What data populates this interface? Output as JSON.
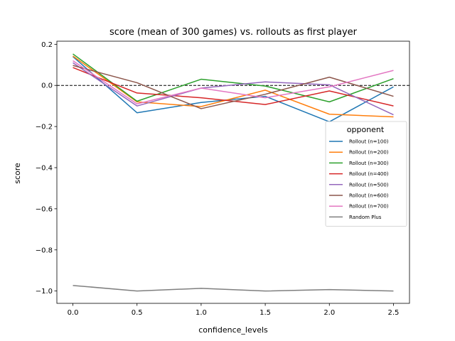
{
  "chart_data": {
    "type": "line",
    "title": "score (mean of 300 games) vs. rollouts as first player",
    "xlabel": "confidence_levels",
    "ylabel": "score",
    "x": [
      0.0,
      0.5,
      1.0,
      1.5,
      2.0,
      2.5
    ],
    "x_ticks": [
      0.0,
      0.5,
      1.0,
      1.5,
      2.0,
      2.5
    ],
    "x_tick_labels": [
      "0.0",
      "0.5",
      "1.0",
      "1.5",
      "2.0",
      "2.5"
    ],
    "y_ticks": [
      0.2,
      0.0,
      -0.2,
      -0.4,
      -0.6,
      -0.8,
      -1.0
    ],
    "y_tick_labels": [
      "0.2",
      "0.0",
      "−0.2",
      "−0.4",
      "−0.6",
      "−0.8",
      "−1.0"
    ],
    "xlim": [
      -0.125,
      2.625
    ],
    "ylim": [
      -1.06,
      0.215
    ],
    "reference_line": {
      "y": 0.0,
      "style": "dashed",
      "color": "#000000"
    },
    "grid": false,
    "legend": {
      "title": "opponent",
      "placement": "center-right"
    },
    "series": [
      {
        "name": "Rollout (n=100)",
        "color": "#1f77b4",
        "values": [
          0.14,
          -0.133,
          -0.083,
          -0.053,
          -0.177,
          -0.007
        ]
      },
      {
        "name": "Rollout (n=200)",
        "color": "#ff7f0e",
        "values": [
          0.143,
          -0.08,
          -0.103,
          -0.023,
          -0.14,
          -0.153
        ]
      },
      {
        "name": "Rollout (n=300)",
        "color": "#2ca02c",
        "values": [
          0.153,
          -0.077,
          0.03,
          -0.003,
          -0.08,
          0.033
        ]
      },
      {
        "name": "Rollout (n=400)",
        "color": "#d62728",
        "values": [
          0.087,
          -0.037,
          -0.06,
          -0.093,
          -0.027,
          -0.1
        ]
      },
      {
        "name": "Rollout (n=500)",
        "color": "#9467bd",
        "values": [
          0.11,
          -0.1,
          -0.013,
          0.017,
          0.003,
          -0.143
        ]
      },
      {
        "name": "Rollout (n=600)",
        "color": "#8c564b",
        "values": [
          0.097,
          0.013,
          -0.113,
          -0.043,
          0.04,
          -0.053
        ]
      },
      {
        "name": "Rollout (n=700)",
        "color": "#e377c2",
        "values": [
          0.12,
          -0.09,
          -0.013,
          -0.06,
          -0.007,
          0.073
        ]
      },
      {
        "name": "Random Plus",
        "color": "#7f7f7f",
        "values": [
          -0.973,
          -1.0,
          -0.987,
          -1.0,
          -0.993,
          -1.0
        ]
      }
    ]
  }
}
